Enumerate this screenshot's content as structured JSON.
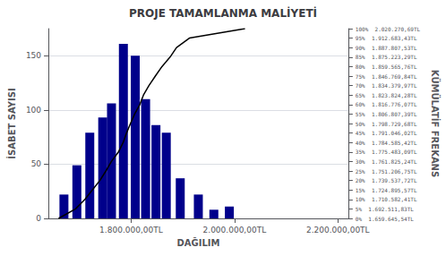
{
  "chart_data": {
    "type": "bar",
    "title": "PROJE TAMAMLANMA MALİYETİ",
    "xlabel": "DAĞILIM",
    "ylabel": "İSABET SAYISI",
    "y2label": "KÜMÜLATİF FREKANS",
    "xlim": [
      1640000,
      2220000
    ],
    "xticks": [
      {
        "value": 1800000,
        "label": "1.800.000,00TL"
      },
      {
        "value": 2000000,
        "label": "2.000.000,00TL"
      },
      {
        "value": 2200000,
        "label": "2.200.000,00TL"
      }
    ],
    "ylim": [
      0,
      175
    ],
    "yticks": [
      0,
      50,
      100,
      150
    ],
    "y2lim": [
      0,
      100
    ],
    "y2ticks": [
      {
        "value": 0,
        "label": "0%  1.659.645,54TL"
      },
      {
        "value": 5,
        "label": "5%  1.692.511,83TL"
      },
      {
        "value": 10,
        "label": "10%  1.710.582,41TL"
      },
      {
        "value": 15,
        "label": "15%  1.724.895,57TL"
      },
      {
        "value": 20,
        "label": "20%  1.739.537,72TL"
      },
      {
        "value": 25,
        "label": "25%  1.751.206,75TL"
      },
      {
        "value": 30,
        "label": "30%  1.761.825,24TL"
      },
      {
        "value": 35,
        "label": "35%  1.775.483,09TL"
      },
      {
        "value": 40,
        "label": "40%  1.784.585,42TL"
      },
      {
        "value": 45,
        "label": "45%  1.791.046,02TL"
      },
      {
        "value": 50,
        "label": "50%  1.798.729,68TL"
      },
      {
        "value": 55,
        "label": "55%  1.806.807,39TL"
      },
      {
        "value": 60,
        "label": "60%  1.816.776,07TL"
      },
      {
        "value": 65,
        "label": "65%  1.823.824,28TL"
      },
      {
        "value": 70,
        "label": "70%  1.834.379,97TL"
      },
      {
        "value": 75,
        "label": "75%  1.846.769,84TL"
      },
      {
        "value": 80,
        "label": "80%  1.859.565,76TL"
      },
      {
        "value": 85,
        "label": "85%  1.875.223,29TL"
      },
      {
        "value": 90,
        "label": "90%  1.887.807,53TL"
      },
      {
        "value": 95,
        "label": "95%  1.912.683,43TL"
      },
      {
        "value": 100,
        "label": "100%  2.020.270,69TL"
      }
    ],
    "grid": true,
    "series": [
      {
        "type": "bar",
        "color": "#00008B",
        "x": [
          1670000,
          1695000,
          1720000,
          1745000,
          1762000,
          1785000,
          1808000,
          1828000,
          1848000,
          1868000,
          1895000,
          1930000,
          1960000,
          1990000
        ],
        "values": [
          22,
          49,
          79,
          93,
          106,
          161,
          150,
          110,
          86,
          79,
          37,
          22,
          8,
          11
        ]
      },
      {
        "type": "line",
        "axis": "y2",
        "color": "#000000",
        "x": [
          1659645.54,
          1692511.83,
          1710582.41,
          1724895.57,
          1739537.72,
          1751206.75,
          1761825.24,
          1775483.09,
          1784585.42,
          1791046.02,
          1798729.68,
          1806807.39,
          1816776.07,
          1823824.28,
          1834379.97,
          1846769.84,
          1859565.76,
          1875223.29,
          1887807.53,
          1912683.43,
          2020270.69
        ],
        "values": [
          0,
          5,
          10,
          15,
          20,
          25,
          30,
          35,
          40,
          45,
          50,
          55,
          60,
          65,
          70,
          75,
          80,
          85,
          90,
          95,
          100
        ]
      }
    ]
  }
}
